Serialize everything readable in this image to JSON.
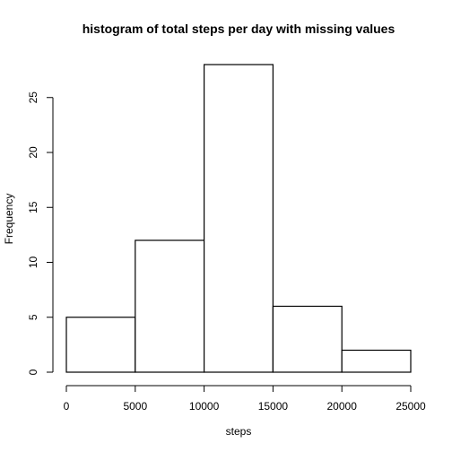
{
  "chart_data": {
    "type": "bar",
    "title": "histogram of total steps per day with missing values",
    "xlabel": "steps",
    "ylabel": "Frequency",
    "bins": [
      {
        "from": 0,
        "to": 5000,
        "count": 5
      },
      {
        "from": 5000,
        "to": 10000,
        "count": 12
      },
      {
        "from": 10000,
        "to": 15000,
        "count": 28
      },
      {
        "from": 15000,
        "to": 20000,
        "count": 6
      },
      {
        "from": 20000,
        "to": 25000,
        "count": 2
      }
    ],
    "xlim": [
      0,
      25000
    ],
    "ylim": [
      0,
      28
    ],
    "xticks": [
      0,
      5000,
      10000,
      15000,
      20000,
      25000
    ],
    "yticks": [
      0,
      5,
      10,
      15,
      20,
      25
    ],
    "grid": false,
    "legend": "none"
  }
}
